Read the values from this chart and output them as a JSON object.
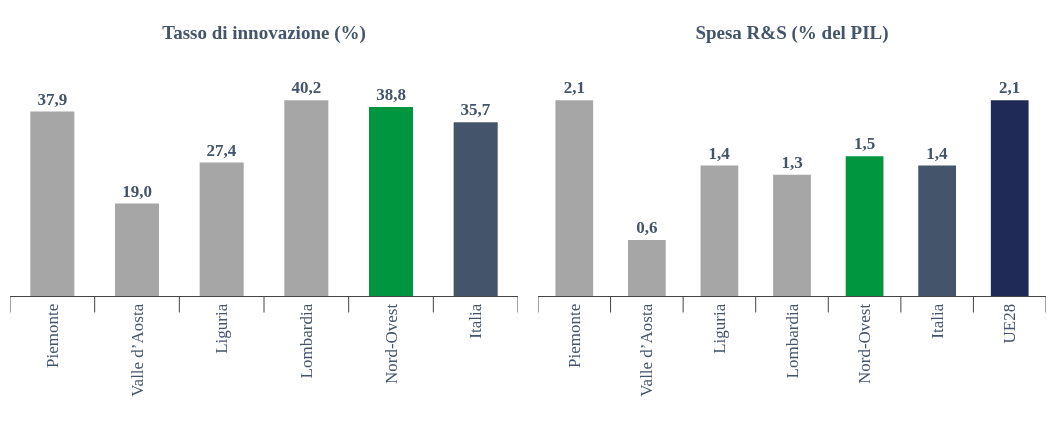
{
  "chart_data": [
    {
      "type": "bar",
      "title": "Tasso di innovazione (%)",
      "categories": [
        "Piemonte",
        "Valle d’Aosta",
        "Liguria",
        "Lombardia",
        "Nord-Ovest",
        "Italia"
      ],
      "values": [
        37.9,
        19.0,
        27.4,
        40.2,
        38.8,
        35.7
      ],
      "value_labels": [
        "37,9",
        "19,0",
        "27,4",
        "40,2",
        "38,8",
        "35,7"
      ],
      "colors": [
        "#a6a6a6",
        "#a6a6a6",
        "#a6a6a6",
        "#a6a6a6",
        "#00963f",
        "#44546a"
      ],
      "tick_labels": "x"
    },
    {
      "type": "bar",
      "title": "Spesa R&S (% del PIL)",
      "categories": [
        "Piemonte",
        "Valle d’Aosta",
        "Liguria",
        "Lombardia",
        "Nord-Ovest",
        "Italia",
        "UE28"
      ],
      "values": [
        2.1,
        0.6,
        1.4,
        1.3,
        1.5,
        1.4,
        2.1
      ],
      "value_labels": [
        "2,1",
        "0,6",
        "1,4",
        "1,3",
        "1,5",
        "1,4",
        "2,1"
      ],
      "colors": [
        "#a6a6a6",
        "#a6a6a6",
        "#a6a6a6",
        "#a6a6a6",
        "#00963f",
        "#44546a",
        "#1f2a56"
      ],
      "tick_labels": "x"
    }
  ]
}
